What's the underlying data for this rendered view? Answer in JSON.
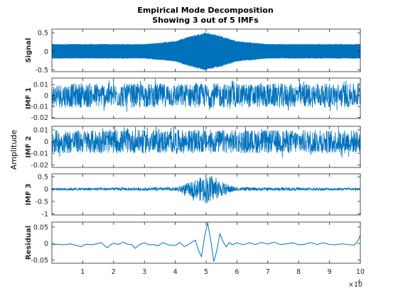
{
  "chart_data": {
    "type": "line",
    "title": "Empirical Mode Decomposition",
    "subtitle": "Showing 3 out of 5 IMFs",
    "ylabel": "Amplitude",
    "x_exponent_label": "×10",
    "x_exponent_power": "4",
    "xlim": [
      0,
      100000
    ],
    "x_ticks": [
      10000,
      20000,
      30000,
      40000,
      50000,
      60000,
      70000,
      80000,
      90000,
      100000
    ],
    "x_tick_labels": [
      "1",
      "2",
      "3",
      "4",
      "5",
      "6",
      "7",
      "8",
      "9",
      "10"
    ],
    "line_color": "#0072BD",
    "grid": false,
    "panels": [
      {
        "label": "Signal",
        "ylim": [
          -0.55,
          0.6
        ],
        "y_ticks": [
          0.5,
          0,
          -0.5
        ],
        "y_tick_labels": [
          "0.5",
          "0",
          "-0.5"
        ],
        "envelope": [
          {
            "x": 0,
            "amp": 0.2
          },
          {
            "x": 30000,
            "amp": 0.2
          },
          {
            "x": 40000,
            "amp": 0.28
          },
          {
            "x": 45000,
            "amp": 0.42
          },
          {
            "x": 50000,
            "amp": 0.52
          },
          {
            "x": 55000,
            "amp": 0.42
          },
          {
            "x": 60000,
            "amp": 0.28
          },
          {
            "x": 70000,
            "amp": 0.2
          },
          {
            "x": 100000,
            "amp": 0.2
          }
        ]
      },
      {
        "label": "IMF 1",
        "ylim": [
          -0.021,
          0.016
        ],
        "y_ticks": [
          0.01,
          0,
          -0.01,
          -0.02
        ],
        "y_tick_labels": [
          "0.01",
          "0",
          "-0.01",
          "-0.02"
        ],
        "envelope": [
          {
            "x": 0,
            "amp": 0.011
          },
          {
            "x": 100000,
            "amp": 0.011
          }
        ]
      },
      {
        "label": "IMF 2",
        "ylim": [
          -0.022,
          0.013
        ],
        "y_ticks": [
          0.01,
          0,
          -0.01,
          -0.02
        ],
        "y_tick_labels": [
          "0.01",
          "0",
          "-0.01",
          "-0.02"
        ],
        "envelope": [
          {
            "x": 0,
            "amp": 0.01
          },
          {
            "x": 100000,
            "amp": 0.01
          }
        ]
      },
      {
        "label": "IMF 3",
        "ylim": [
          -1.05,
          0.62
        ],
        "y_ticks": [
          0.5,
          0,
          -0.5,
          -1
        ],
        "y_tick_labels": [
          "0.5",
          "0",
          "-0.5",
          "-1"
        ],
        "envelope": [
          {
            "x": 0,
            "amp": 0.05
          },
          {
            "x": 40000,
            "amp": 0.07
          },
          {
            "x": 45000,
            "amp": 0.3
          },
          {
            "x": 50000,
            "amp": 0.6
          },
          {
            "x": 55000,
            "amp": 0.3
          },
          {
            "x": 60000,
            "amp": 0.07
          },
          {
            "x": 100000,
            "amp": 0.05
          }
        ]
      },
      {
        "label": "Residual",
        "ylim": [
          -0.06,
          0.065
        ],
        "y_ticks": [
          0.05,
          0,
          -0.05
        ],
        "y_tick_labels": [
          "0.05",
          "0",
          "-0.05"
        ],
        "points": [
          [
            0,
            -0.004
          ],
          [
            2000,
            -0.002
          ],
          [
            4000,
            -0.004
          ],
          [
            6000,
            -0.001
          ],
          [
            8000,
            -0.006
          ],
          [
            9500,
            -0.01
          ],
          [
            11000,
            -0.002
          ],
          [
            13000,
            -0.004
          ],
          [
            14500,
            -0.001
          ],
          [
            16000,
            0.003
          ],
          [
            17000,
            -0.006
          ],
          [
            18000,
            -0.013
          ],
          [
            19000,
            -0.004
          ],
          [
            20000,
            0.001
          ],
          [
            21500,
            -0.003
          ],
          [
            23000,
            0.004
          ],
          [
            24500,
            -0.002
          ],
          [
            26000,
            -0.004
          ],
          [
            27000,
            -0.015
          ],
          [
            28500,
            -0.003
          ],
          [
            30000,
            0.002
          ],
          [
            31500,
            -0.004
          ],
          [
            33000,
            -0.003
          ],
          [
            34500,
            -0.007
          ],
          [
            36000,
            0.003
          ],
          [
            38000,
            -0.005
          ],
          [
            40000,
            -0.006
          ],
          [
            41500,
            0.003
          ],
          [
            43000,
            -0.01
          ],
          [
            44500,
            -0.002
          ],
          [
            45500,
            0.005
          ],
          [
            46500,
            0.01
          ],
          [
            47500,
            -0.02
          ],
          [
            48500,
            -0.04
          ],
          [
            49500,
            0.02
          ],
          [
            50500,
            0.063
          ],
          [
            51500,
            0.01
          ],
          [
            52500,
            -0.055
          ],
          [
            53500,
            -0.02
          ],
          [
            54500,
            0.03
          ],
          [
            55500,
            0.005
          ],
          [
            56500,
            -0.01
          ],
          [
            57500,
            0.003
          ],
          [
            58500,
            -0.004
          ],
          [
            60000,
            0.002
          ],
          [
            62000,
            -0.004
          ],
          [
            64000,
            0.002
          ],
          [
            66000,
            -0.003
          ],
          [
            68000,
            0.003
          ],
          [
            70000,
            -0.002
          ],
          [
            72000,
            0.004
          ],
          [
            74000,
            -0.003
          ],
          [
            76000,
            -0.001
          ],
          [
            78000,
            0.002
          ],
          [
            80000,
            -0.004
          ],
          [
            82000,
            -0.002
          ],
          [
            84000,
            0.003
          ],
          [
            86000,
            -0.003
          ],
          [
            88000,
            0.002
          ],
          [
            90000,
            -0.003
          ],
          [
            92000,
            -0.004
          ],
          [
            94000,
            -0.001
          ],
          [
            96000,
            -0.003
          ],
          [
            98000,
            -0.005
          ],
          [
            99000,
            0.005
          ],
          [
            100000,
            0.025
          ]
        ]
      }
    ]
  }
}
